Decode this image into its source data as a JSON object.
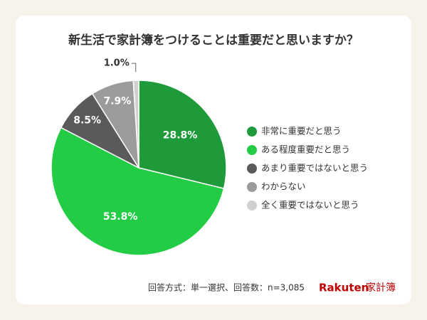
{
  "chart_data": {
    "type": "pie",
    "title": "新生活で家計簿をつけることは重要だと思いますか？",
    "categories": [
      "非常に重要だと思う",
      "ある程度重要だと思う",
      "あまり重要ではないと思う",
      "わからない",
      "全く重要ではないと思う"
    ],
    "values": [
      28.8,
      53.8,
      8.5,
      7.9,
      1.0
    ],
    "value_labels": [
      "28.8%",
      "53.8%",
      "8.5%",
      "7.9%",
      "1.0%"
    ],
    "colors": [
      "#1f9a3b",
      "#22cc44",
      "#5a5a5a",
      "#9b9b9b",
      "#d0d0d0"
    ],
    "legend": "right",
    "note": "回答方式：単一選択、回答数：n=3,085",
    "logo_text": "Rakuten",
    "logo_subtext": "家計簿"
  }
}
